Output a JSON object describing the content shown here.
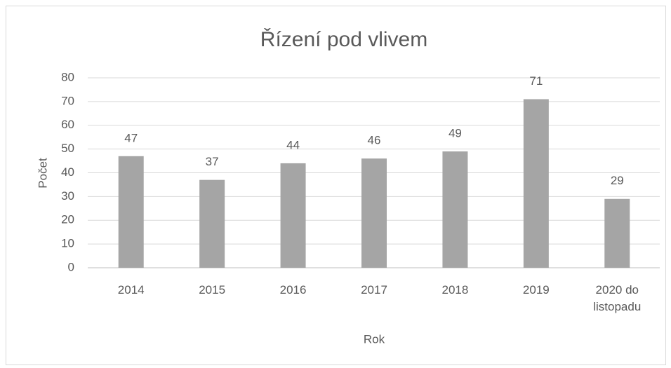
{
  "chart_data": {
    "type": "bar",
    "title": "Řízení pod vlivem",
    "x_label": "Rok",
    "y_label": "Počet",
    "categories": [
      "2014",
      "2015",
      "2016",
      "2017",
      "2018",
      "2019",
      "2020 do listopadu"
    ],
    "values": [
      47,
      37,
      44,
      46,
      49,
      71,
      29
    ],
    "color": "#a5a5a5",
    "ylim": [
      0,
      80
    ],
    "yticks": [
      0,
      10,
      20,
      30,
      40,
      50,
      60,
      70,
      80
    ],
    "grid": true
  }
}
